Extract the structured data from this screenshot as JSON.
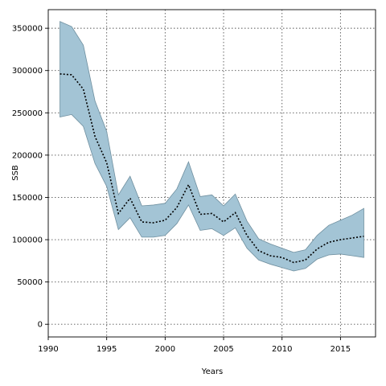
{
  "chart_data": {
    "type": "line",
    "xlabel": "Years",
    "ylabel": "SSB",
    "xlim": [
      1990,
      2018
    ],
    "ylim": [
      -15000,
      372000
    ],
    "grid": true,
    "x_ticks": [
      1990,
      1995,
      2000,
      2005,
      2010,
      2015
    ],
    "y_ticks": [
      0,
      50000,
      100000,
      150000,
      200000,
      250000,
      300000,
      350000
    ],
    "x": [
      1991,
      1992,
      1993,
      1994,
      1995,
      1996,
      1997,
      1998,
      1999,
      2000,
      2001,
      2002,
      2003,
      2004,
      2005,
      2006,
      2007,
      2008,
      2009,
      2010,
      2011,
      2012,
      2013,
      2014,
      2015,
      2016,
      2017
    ],
    "series": [
      {
        "values": [
          296000,
          295000,
          278000,
          222000,
          191000,
          131000,
          149000,
          121000,
          120000,
          123000,
          138000,
          165000,
          130000,
          131000,
          121000,
          132000,
          105000,
          87000,
          81000,
          79000,
          73000,
          76000,
          89000,
          97000,
          100000,
          102000,
          104000
        ],
        "upper": [
          358000,
          352000,
          330000,
          264000,
          228000,
          153000,
          175000,
          140000,
          141000,
          143000,
          160000,
          192000,
          151000,
          153000,
          140000,
          154000,
          122000,
          101000,
          95000,
          90000,
          85000,
          88000,
          105000,
          117000,
          123000,
          129000,
          137000
        ],
        "lower": [
          245000,
          248000,
          234000,
          190000,
          163000,
          112000,
          126000,
          103000,
          103000,
          105000,
          119000,
          141000,
          111000,
          113000,
          105000,
          114000,
          90000,
          76000,
          71000,
          67000,
          63000,
          66000,
          77000,
          82000,
          83000,
          81000,
          79000
        ],
        "line_color": "#000000",
        "band_color": "#a3c4d5"
      }
    ]
  }
}
